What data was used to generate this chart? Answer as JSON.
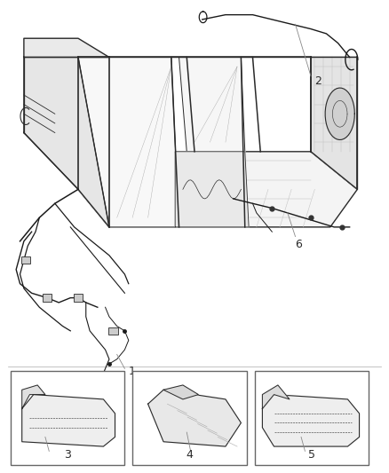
{
  "background_color": "#ffffff",
  "line_color": "#2a2a2a",
  "figsize": [
    4.38,
    5.33
  ],
  "dpi": 100,
  "label_fontsize": 9,
  "box_edge_color": "#555555",
  "grid_color": "#cccccc",
  "body_fill": "#f0f0f0",
  "body_fill2": "#e8e8e8",
  "wire_color": "#1a1a1a"
}
